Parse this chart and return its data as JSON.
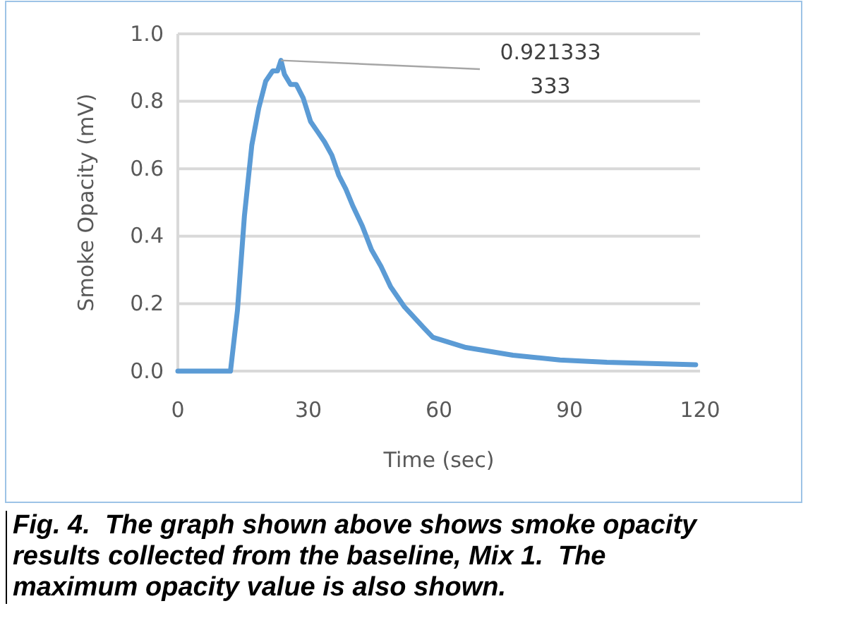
{
  "chart_data": {
    "type": "line",
    "xlabel": "Time (sec)",
    "ylabel": "Smoke Opacity (mV)",
    "xlim": [
      0,
      120
    ],
    "ylim": [
      0,
      1
    ],
    "xticks": [
      0,
      30,
      60,
      90,
      120
    ],
    "yticks": [
      {
        "value": 0,
        "label": "0.0"
      },
      {
        "value": 0.2,
        "label": "0.2"
      },
      {
        "value": 0.4,
        "label": "0.4"
      },
      {
        "value": 0.6,
        "label": "0.6"
      },
      {
        "value": 0.8,
        "label": "0.8"
      },
      {
        "value": 1,
        "label": "1.0"
      }
    ],
    "grid": "y",
    "marker": "none",
    "line_style": "solid",
    "series": [
      {
        "color": "#5b9bd5",
        "x": [
          0,
          12.1,
          13.7,
          15.3,
          17,
          18.6,
          20.2,
          21.8,
          22.9,
          23.7,
          24.5,
          25.9,
          27.2,
          28.8,
          30.5,
          32.1,
          33.7,
          35.4,
          37,
          38.6,
          40.2,
          42.4,
          44.5,
          46.7,
          48.9,
          52.1,
          56.4,
          58.6,
          66.2,
          77,
          87.8,
          98.6,
          119
        ],
        "values": [
          0,
          0,
          0.18,
          0.46,
          0.67,
          0.78,
          0.86,
          0.89,
          0.89,
          0.921333333,
          0.88,
          0.85,
          0.85,
          0.81,
          0.74,
          0.71,
          0.68,
          0.64,
          0.58,
          0.54,
          0.49,
          0.43,
          0.36,
          0.31,
          0.25,
          0.19,
          0.13,
          0.1,
          0.07,
          0.047,
          0.033,
          0.026,
          0.019
        ]
      }
    ],
    "annotations": [
      {
        "text": "0.921333333",
        "x": 23.7,
        "y": 0.921333333
      },
      "Fig. 4.  The graph shown above shows smoke opacity results collected from the baseline, Mix 1.  The maximum opacity value is also shown."
    ]
  }
}
